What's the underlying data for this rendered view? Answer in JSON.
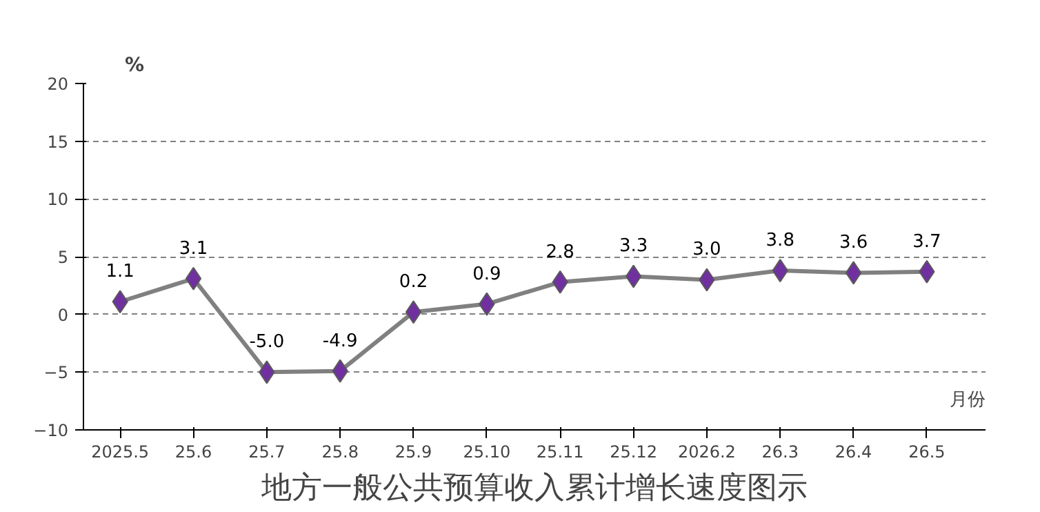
{
  "chart_data": {
    "type": "line",
    "title": "地方一般公共预算收入累计增长速度图示",
    "ylabel": "%",
    "xlabel": "月份",
    "categories": [
      "2025.5",
      "25.6",
      "25.7",
      "25.8",
      "25.9",
      "25.10",
      "25.11",
      "25.12",
      "2026.2",
      "26.3",
      "26.4",
      "26.5"
    ],
    "series": [
      {
        "color": "#808080",
        "colors": [
          "#7030a0",
          "#7030a0",
          "#7030a0",
          "#7030a0",
          "#7030a0",
          "#7030a0",
          "#7030a0",
          "#7030a0",
          "#7030a0",
          "#7030a0",
          "#7030a0",
          "#7030a0"
        ],
        "values": [
          1.1,
          3.1,
          -5.0,
          -4.9,
          0.2,
          0.9,
          2.8,
          3.3,
          3.0,
          3.8,
          3.6,
          3.7
        ],
        "value_labels": [
          "1.1",
          "3.1",
          "-5.0",
          "-4.9",
          "0.2",
          "0.9",
          "2.8",
          "3.3",
          "3.0",
          "3.8",
          "3.6",
          "3.7"
        ]
      }
    ],
    "ylim": [
      -10,
      20
    ],
    "yticks": [
      -10,
      -5,
      0,
      5,
      10,
      15,
      20
    ],
    "grid": "y",
    "marker": "diamond",
    "line_style": "solid"
  }
}
